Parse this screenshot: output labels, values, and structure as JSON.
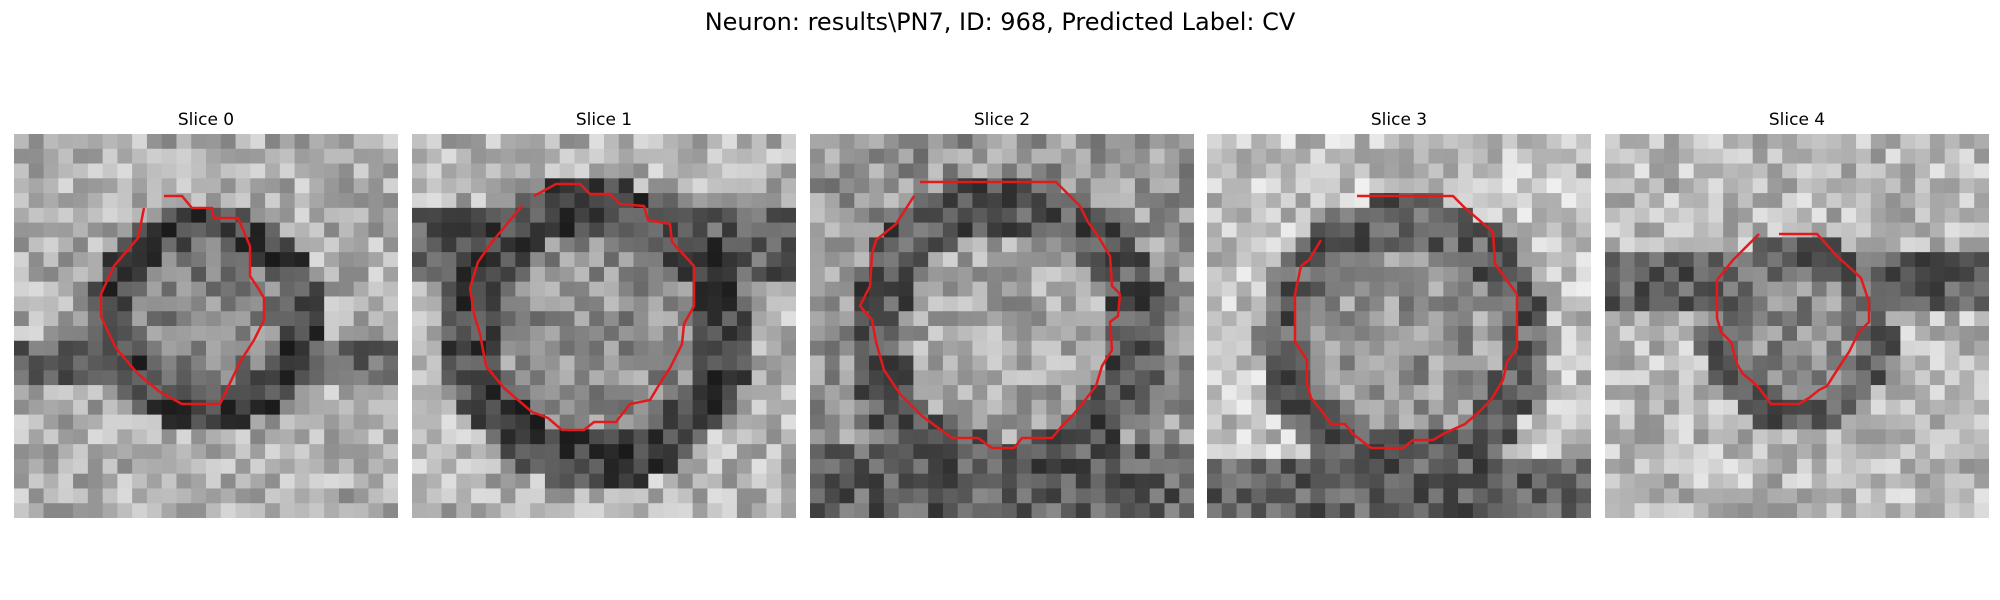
{
  "figure": {
    "title": "Neuron: results\\PN7, ID: 968, Predicted Label: CV"
  },
  "contour_color": "#e31a1c",
  "panels": [
    {
      "title": "Slice 0"
    },
    {
      "title": "Slice 1"
    },
    {
      "title": "Slice 2"
    },
    {
      "title": "Slice 3"
    },
    {
      "title": "Slice 4"
    }
  ]
}
